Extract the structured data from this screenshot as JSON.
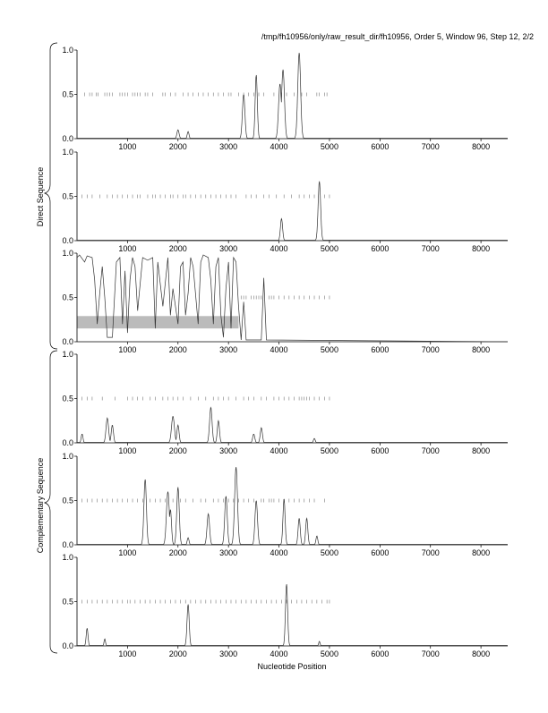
{
  "chart_data": {
    "type": "line",
    "title": "/tmp/fh10956/only/raw_result_dir/fh10956, Order 5, Window 96, Step 12, 2/2",
    "xlabel": "Nucleotide Position",
    "group_labels": [
      "Direct Sequence",
      "Complementary Sequence"
    ],
    "xlim": [
      0,
      8530
    ],
    "ylim": [
      0,
      1
    ],
    "x_ticks": [
      1000,
      2000,
      3000,
      4000,
      5000,
      6000,
      7000,
      8000
    ],
    "y_ticks": [
      "0.0",
      "0.5",
      "1.0"
    ],
    "colors": {
      "line": "#333333",
      "tick": "#777777",
      "region": "#bbbbbb",
      "axis": "#000000"
    },
    "panels": [
      {
        "group": "Direct Sequence",
        "frame": 1,
        "peaks": [
          [
            2000,
            0.1,
            30
          ],
          [
            2200,
            0.08,
            25
          ],
          [
            3300,
            0.5,
            35
          ],
          [
            3550,
            0.72,
            30
          ],
          [
            4020,
            0.62,
            40
          ],
          [
            4080,
            0.78,
            40
          ],
          [
            4400,
            0.97,
            40
          ]
        ],
        "ticks": [
          150,
          250,
          300,
          380,
          420,
          550,
          600,
          650,
          700,
          850,
          900,
          950,
          1000,
          1100,
          1150,
          1200,
          1250,
          1350,
          1400,
          1500,
          1700,
          1750,
          1850,
          1950,
          2100,
          2200,
          2300,
          2400,
          2500,
          2600,
          2700,
          2800,
          2900,
          3000,
          3050,
          3200,
          3300,
          3400,
          3500,
          3600,
          3700,
          3900,
          4050,
          4150,
          4300,
          4450,
          4550,
          4750,
          4800,
          4900,
          4950
        ]
      },
      {
        "group": "Direct Sequence",
        "frame": 2,
        "peaks": [
          [
            4050,
            0.25,
            30
          ],
          [
            4800,
            0.67,
            35
          ]
        ],
        "ticks": [
          100,
          200,
          300,
          450,
          600,
          700,
          800,
          900,
          1000,
          1100,
          1200,
          1250,
          1400,
          1500,
          1550,
          1650,
          1750,
          1850,
          1900,
          2000,
          2100,
          2150,
          2250,
          2350,
          2450,
          2550,
          2650,
          2750,
          2850,
          2950,
          3050,
          3150,
          3350,
          3450,
          3550,
          3700,
          3800,
          3950,
          4100,
          4250,
          4400,
          4500,
          4600,
          4700,
          4900,
          5000
        ]
      },
      {
        "group": "Direct Sequence",
        "frame": 3,
        "points": [
          [
            0,
            0.95
          ],
          [
            50,
            0.98
          ],
          [
            150,
            0.9
          ],
          [
            200,
            0.97
          ],
          [
            300,
            0.95
          ],
          [
            350,
            0.7
          ],
          [
            400,
            0.2
          ],
          [
            450,
            0.55
          ],
          [
            500,
            0.85
          ],
          [
            550,
            0.5
          ],
          [
            600,
            0.05
          ],
          [
            700,
            0.05
          ],
          [
            780,
            0.9
          ],
          [
            850,
            0.95
          ],
          [
            900,
            0.2
          ],
          [
            950,
            0.8
          ],
          [
            1000,
            0.1
          ],
          [
            1050,
            0.7
          ],
          [
            1100,
            0.95
          ],
          [
            1150,
            0.85
          ],
          [
            1200,
            0.35
          ],
          [
            1300,
            0.95
          ],
          [
            1400,
            0.92
          ],
          [
            1500,
            0.95
          ],
          [
            1550,
            0.15
          ],
          [
            1600,
            0.9
          ],
          [
            1700,
            0.4
          ],
          [
            1800,
            0.95
          ],
          [
            1850,
            0.3
          ],
          [
            1900,
            0.6
          ],
          [
            2000,
            0.2
          ],
          [
            2050,
            0.85
          ],
          [
            2100,
            0.9
          ],
          [
            2150,
            0.3
          ],
          [
            2200,
            0.55
          ],
          [
            2250,
            0.95
          ],
          [
            2300,
            0.85
          ],
          [
            2400,
            0.2
          ],
          [
            2450,
            0.9
          ],
          [
            2500,
            0.98
          ],
          [
            2600,
            0.95
          ],
          [
            2650,
            0.7
          ],
          [
            2700,
            0.2
          ],
          [
            2750,
            0.85
          ],
          [
            2800,
            0.95
          ],
          [
            2850,
            0.3
          ],
          [
            2900,
            0.05
          ],
          [
            2950,
            0.6
          ],
          [
            3000,
            0.9
          ],
          [
            3050,
            0.15
          ],
          [
            3100,
            0.95
          ],
          [
            3150,
            0.9
          ],
          [
            3200,
            0.4
          ],
          [
            3250,
            0.02
          ],
          [
            3300,
            0.45
          ],
          [
            3350,
            0.02
          ],
          [
            3650,
            0.02
          ],
          [
            3700,
            0.72
          ],
          [
            3750,
            0.02
          ],
          [
            8530,
            0.0
          ]
        ],
        "region": {
          "x": [
            0,
            3200
          ],
          "y": [
            0.15,
            0.29
          ]
        },
        "ticks": [
          3250,
          3300,
          3350,
          3450,
          3500,
          3550,
          3600,
          3650,
          3800,
          3850,
          3900,
          4000,
          4100,
          4200,
          4300,
          4400,
          4500,
          4600,
          4700,
          4800,
          4900,
          5000
        ]
      },
      {
        "group": "Complementary Sequence",
        "frame": 1,
        "peaks": [
          [
            100,
            0.1,
            25
          ],
          [
            600,
            0.28,
            35
          ],
          [
            700,
            0.2,
            30
          ],
          [
            1900,
            0.3,
            40
          ],
          [
            2000,
            0.2,
            30
          ],
          [
            2650,
            0.4,
            35
          ],
          [
            2800,
            0.25,
            30
          ],
          [
            3500,
            0.1,
            30
          ],
          [
            3650,
            0.17,
            30
          ],
          [
            4700,
            0.05,
            25
          ]
        ],
        "ticks": [
          100,
          200,
          300,
          500,
          750,
          1000,
          1100,
          1200,
          1300,
          1450,
          1550,
          1700,
          1800,
          1900,
          2000,
          2100,
          2250,
          2400,
          2550,
          2700,
          2800,
          2900,
          3000,
          3150,
          3300,
          3400,
          3500,
          3650,
          3750,
          3900,
          4000,
          4100,
          4200,
          4300,
          4400,
          4450,
          4500,
          4550,
          4600,
          4700,
          4800,
          4900,
          5000
        ]
      },
      {
        "group": "Complementary Sequence",
        "frame": 2,
        "peaks": [
          [
            1350,
            0.74,
            35
          ],
          [
            1800,
            0.6,
            40
          ],
          [
            1850,
            0.4,
            30
          ],
          [
            2000,
            0.65,
            35
          ],
          [
            2200,
            0.08,
            25
          ],
          [
            2600,
            0.35,
            35
          ],
          [
            2950,
            0.55,
            35
          ],
          [
            3150,
            0.88,
            40
          ],
          [
            3550,
            0.5,
            35
          ],
          [
            4100,
            0.52,
            30
          ],
          [
            4400,
            0.3,
            30
          ],
          [
            4550,
            0.3,
            30
          ],
          [
            4750,
            0.1,
            25
          ]
        ],
        "ticks": [
          100,
          200,
          300,
          400,
          500,
          600,
          700,
          800,
          900,
          1000,
          1100,
          1200,
          1300,
          1450,
          1550,
          1650,
          1750,
          1900,
          2050,
          2150,
          2300,
          2450,
          2550,
          2700,
          2800,
          2900,
          3000,
          3100,
          3200,
          3300,
          3400,
          3500,
          3650,
          3700,
          3800,
          3850,
          3900,
          4000,
          4100,
          4200,
          4300,
          4400,
          4500,
          4600,
          4700,
          4900
        ]
      },
      {
        "group": "Complementary Sequence",
        "frame": 3,
        "peaks": [
          [
            200,
            0.2,
            25
          ],
          [
            550,
            0.08,
            20
          ],
          [
            2200,
            0.47,
            30
          ],
          [
            4150,
            0.7,
            30
          ],
          [
            4800,
            0.05,
            20
          ]
        ],
        "ticks": [
          100,
          200,
          300,
          400,
          500,
          600,
          700,
          800,
          900,
          1000,
          1050,
          1150,
          1250,
          1350,
          1450,
          1550,
          1650,
          1750,
          1850,
          1950,
          2050,
          2150,
          2250,
          2350,
          2450,
          2550,
          2650,
          2750,
          2850,
          2950,
          3050,
          3150,
          3250,
          3350,
          3450,
          3550,
          3650,
          3750,
          3850,
          3950,
          4050,
          4150,
          4250,
          4350,
          4450,
          4550,
          4650,
          4750,
          4850,
          4950,
          5000
        ]
      }
    ]
  }
}
